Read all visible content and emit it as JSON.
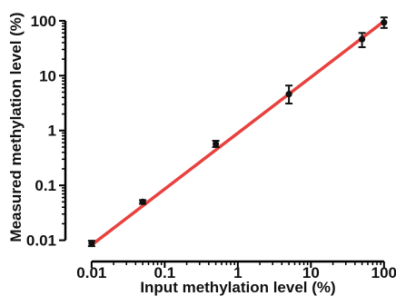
{
  "chart_data": {
    "type": "scatter",
    "title": "",
    "xlabel": "Input methylation level (%)",
    "ylabel": "Measured methylation level (%)",
    "xscale": "log",
    "yscale": "log",
    "xlim": [
      0.006,
      130
    ],
    "ylim": [
      0.006,
      130
    ],
    "xticks": [
      0.01,
      0.1,
      1,
      10,
      100
    ],
    "xtick_labels": [
      "0.01",
      "0.1",
      "1",
      "10",
      "100"
    ],
    "yticks": [
      0.01,
      0.1,
      1,
      10,
      100
    ],
    "ytick_labels": [
      "0.01",
      "0.1",
      "1",
      "10",
      "100"
    ],
    "grid": false,
    "legend": "none",
    "series": [
      {
        "x": [
          0.01,
          0.05,
          0.5,
          5,
          50,
          100
        ],
        "y": [
          0.0088,
          0.05,
          0.57,
          4.6,
          46,
          93
        ],
        "y_err_low": [
          0.0078,
          0.046,
          0.5,
          3.1,
          33,
          74
        ],
        "y_err_high": [
          0.0098,
          0.054,
          0.65,
          6.6,
          60,
          115
        ],
        "color": "#111111"
      }
    ],
    "fit_line": {
      "x": [
        0.01,
        100
      ],
      "y": [
        0.0082,
        98
      ],
      "color": "#e8413e"
    }
  }
}
